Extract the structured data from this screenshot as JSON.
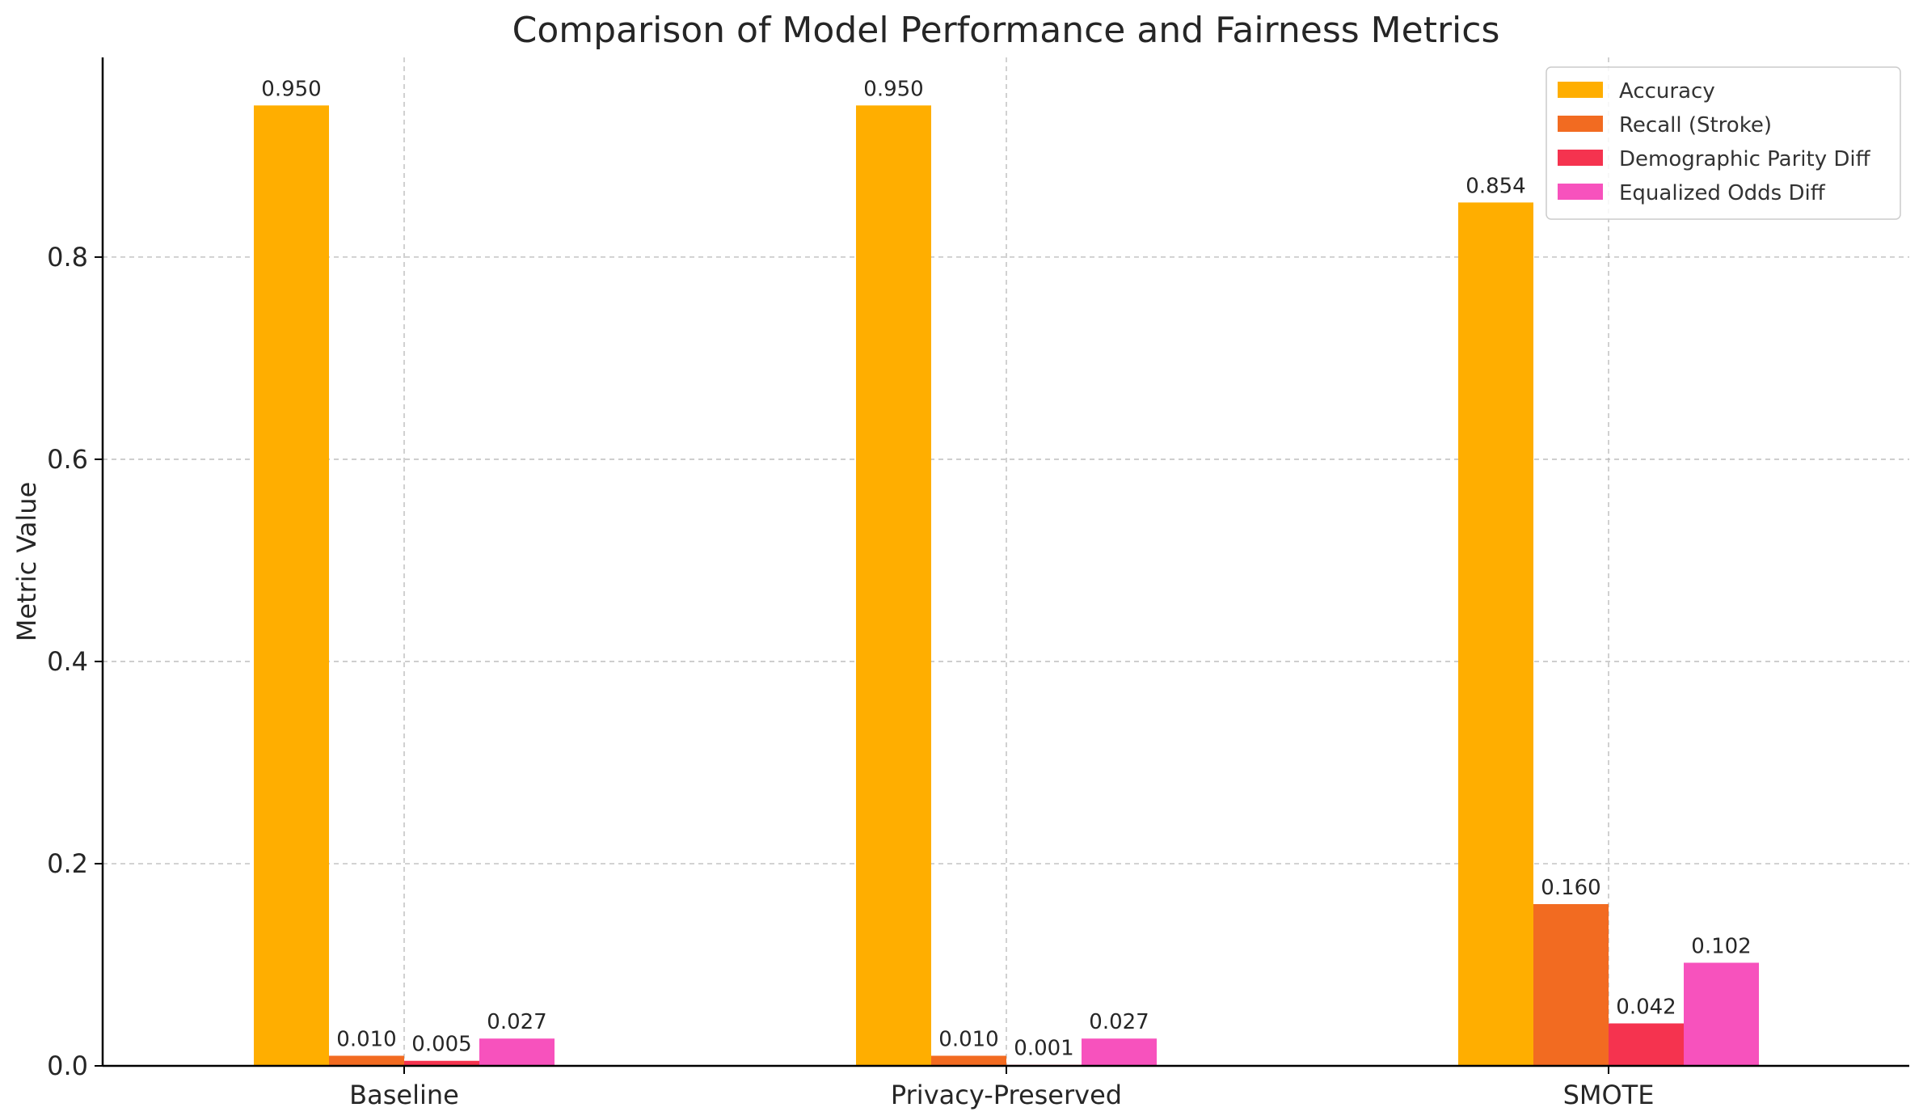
{
  "chart_data": {
    "type": "bar",
    "title": "Comparison of Model Performance and Fairness Metrics",
    "xlabel": "",
    "ylabel": "Metric Value",
    "categories": [
      "Baseline",
      "Privacy-Preserved",
      "SMOTE"
    ],
    "series": [
      {
        "name": "Accuracy",
        "color": "#ffae00",
        "values": [
          0.95,
          0.95,
          0.854
        ],
        "labels": [
          "0.950",
          "0.950",
          "0.854"
        ]
      },
      {
        "name": "Recall (Stroke)",
        "color": "#f26b21",
        "values": [
          0.01,
          0.01,
          0.16
        ],
        "labels": [
          "0.010",
          "0.010",
          "0.160"
        ]
      },
      {
        "name": "Demographic Parity Diff",
        "color": "#f5334f",
        "values": [
          0.005,
          0.001,
          0.042
        ],
        "labels": [
          "0.005",
          "0.001",
          "0.042"
        ]
      },
      {
        "name": "Equalized Odds Diff",
        "color": "#f752bd",
        "values": [
          0.027,
          0.027,
          0.102
        ],
        "labels": [
          "0.027",
          "0.027",
          "0.102"
        ]
      }
    ],
    "ylim": [
      0,
      0.9975
    ],
    "yticks": [
      0.0,
      0.2,
      0.4,
      0.6,
      0.8
    ],
    "ytick_labels": [
      "0.0",
      "0.2",
      "0.4",
      "0.6",
      "0.8"
    ],
    "grid": true,
    "legend_position": "top-right"
  }
}
